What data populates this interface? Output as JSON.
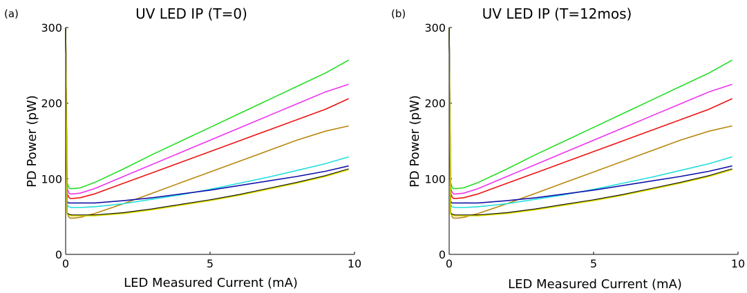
{
  "chart_data": [
    {
      "type": "line",
      "panel_label": "(a)",
      "title": "UV LED IP (T=0)",
      "xlabel": "LED Measured Current (mA)",
      "ylabel": "PD Power (pW)",
      "xlim": [
        0,
        10
      ],
      "ylim": [
        0,
        300
      ],
      "xticks": [
        0,
        5,
        10
      ],
      "yticks": [
        0,
        100,
        200,
        300
      ],
      "grid": false,
      "legend": "none",
      "series": [
        {
          "color": "#22dd22",
          "x": [
            0,
            0.05,
            0.1,
            0.15,
            0.25,
            0.5,
            1,
            2,
            3,
            4,
            5,
            6,
            7,
            8,
            9,
            9.8
          ],
          "y": [
            300,
            95,
            89,
            87,
            87,
            88,
            95,
            113,
            132,
            150,
            168,
            186,
            204,
            222,
            240,
            257
          ]
        },
        {
          "color": "#ee33ee",
          "x": [
            0,
            0.05,
            0.1,
            0.15,
            0.25,
            0.5,
            1,
            2,
            3,
            4,
            5,
            6,
            7,
            8,
            9,
            9.8
          ],
          "y": [
            300,
            88,
            82,
            80,
            80,
            81,
            87,
            103,
            119,
            135,
            151,
            167,
            183,
            199,
            215,
            225
          ]
        },
        {
          "color": "#ee1111",
          "x": [
            0,
            0.05,
            0.1,
            0.15,
            0.25,
            0.5,
            1,
            2,
            3,
            4,
            5,
            6,
            7,
            8,
            9,
            9.8
          ],
          "y": [
            300,
            81,
            76,
            74,
            74,
            75,
            80,
            94,
            108,
            122,
            136,
            150,
            164,
            178,
            192,
            206
          ]
        },
        {
          "color": "#b8860b",
          "x": [
            0,
            0.05,
            0.1,
            0.15,
            0.25,
            0.5,
            1,
            2,
            3,
            4,
            5,
            6,
            7,
            8,
            9,
            9.8
          ],
          "y": [
            300,
            55,
            50,
            48,
            48,
            49,
            54,
            67,
            81,
            95,
            109,
            123,
            137,
            151,
            163,
            170
          ]
        },
        {
          "color": "#22dddd",
          "x": [
            0,
            0.05,
            0.1,
            0.2,
            0.5,
            1,
            2,
            3,
            4,
            5,
            6,
            7,
            8,
            9,
            9.8
          ],
          "y": [
            300,
            66,
            63,
            62,
            62,
            63,
            67,
            73,
            79,
            86,
            94,
            102,
            111,
            120,
            129
          ]
        },
        {
          "color": "#1111aa",
          "x": [
            0,
            0.05,
            0.1,
            0.2,
            0.5,
            1,
            2,
            3,
            4,
            5,
            6,
            7,
            8,
            9,
            9.8
          ],
          "y": [
            300,
            70,
            68,
            68,
            68,
            68,
            71,
            75,
            80,
            85,
            91,
            97,
            103,
            110,
            117
          ]
        },
        {
          "color": "#000000",
          "x": [
            0,
            0.05,
            0.1,
            0.2,
            0.5,
            1,
            2,
            3,
            4,
            5,
            6,
            7,
            8,
            9,
            9.8
          ],
          "y": [
            300,
            55,
            53,
            52,
            52,
            52,
            55,
            60,
            66,
            72,
            79,
            87,
            95,
            104,
            113
          ]
        },
        {
          "color": "#dddd00",
          "x": [
            0,
            0.05,
            0.1,
            0.2,
            0.5,
            1,
            2,
            3,
            4,
            5,
            6,
            7,
            8,
            9,
            9.8
          ],
          "y": [
            300,
            53,
            52,
            51,
            51,
            51,
            54,
            59,
            65,
            71,
            78,
            86,
            94,
            103,
            112
          ]
        }
      ]
    },
    {
      "type": "line",
      "panel_label": "(b)",
      "title": "UV LED IP (T=12mos)",
      "xlabel": "LED Measured Current (mA)",
      "ylabel": "PD Power (pW)",
      "xlim": [
        0,
        10
      ],
      "ylim": [
        0,
        300
      ],
      "xticks": [
        0,
        5,
        10
      ],
      "yticks": [
        0,
        100,
        200,
        300
      ],
      "grid": false,
      "legend": "none",
      "series": [
        {
          "color": "#22dd22",
          "x": [
            0,
            0.05,
            0.1,
            0.15,
            0.25,
            0.5,
            1,
            2,
            3,
            4,
            5,
            6,
            7,
            8,
            9,
            9.8
          ],
          "y": [
            300,
            95,
            89,
            87,
            87,
            88,
            95,
            113,
            132,
            150,
            168,
            186,
            204,
            222,
            240,
            257
          ]
        },
        {
          "color": "#ee33ee",
          "x": [
            0,
            0.05,
            0.1,
            0.15,
            0.25,
            0.5,
            1,
            2,
            3,
            4,
            5,
            6,
            7,
            8,
            9,
            9.8
          ],
          "y": [
            300,
            88,
            82,
            80,
            80,
            81,
            87,
            103,
            119,
            135,
            151,
            167,
            183,
            199,
            215,
            225
          ]
        },
        {
          "color": "#ee1111",
          "x": [
            0,
            0.05,
            0.1,
            0.15,
            0.25,
            0.5,
            1,
            2,
            3,
            4,
            5,
            6,
            7,
            8,
            9,
            9.8
          ],
          "y": [
            300,
            81,
            76,
            74,
            74,
            75,
            80,
            94,
            108,
            122,
            136,
            150,
            164,
            178,
            192,
            206
          ]
        },
        {
          "color": "#b8860b",
          "x": [
            0,
            0.05,
            0.1,
            0.15,
            0.25,
            0.5,
            1,
            2,
            3,
            4,
            5,
            6,
            7,
            8,
            9,
            9.8
          ],
          "y": [
            300,
            55,
            50,
            48,
            48,
            49,
            54,
            67,
            81,
            95,
            109,
            123,
            137,
            151,
            163,
            170
          ]
        },
        {
          "color": "#22dddd",
          "x": [
            0,
            0.05,
            0.1,
            0.2,
            0.5,
            1,
            2,
            3,
            4,
            5,
            6,
            7,
            8,
            9,
            9.8
          ],
          "y": [
            300,
            66,
            63,
            62,
            62,
            63,
            67,
            73,
            79,
            86,
            94,
            102,
            111,
            120,
            129
          ]
        },
        {
          "color": "#1111aa",
          "x": [
            0,
            0.05,
            0.1,
            0.2,
            0.5,
            1,
            2,
            3,
            4,
            5,
            6,
            7,
            8,
            9,
            9.8
          ],
          "y": [
            300,
            70,
            68,
            68,
            68,
            68,
            71,
            75,
            80,
            85,
            91,
            97,
            103,
            110,
            117
          ]
        },
        {
          "color": "#000000",
          "x": [
            0,
            0.05,
            0.1,
            0.2,
            0.5,
            1,
            2,
            3,
            4,
            5,
            6,
            7,
            8,
            9,
            9.8
          ],
          "y": [
            300,
            55,
            53,
            52,
            52,
            52,
            55,
            60,
            66,
            72,
            79,
            87,
            95,
            104,
            113
          ]
        },
        {
          "color": "#dddd00",
          "x": [
            0,
            0.05,
            0.1,
            0.2,
            0.5,
            1,
            2,
            3,
            4,
            5,
            6,
            7,
            8,
            9,
            9.8
          ],
          "y": [
            300,
            53,
            52,
            51,
            51,
            51,
            54,
            59,
            65,
            71,
            78,
            86,
            94,
            103,
            112
          ]
        }
      ]
    }
  ]
}
